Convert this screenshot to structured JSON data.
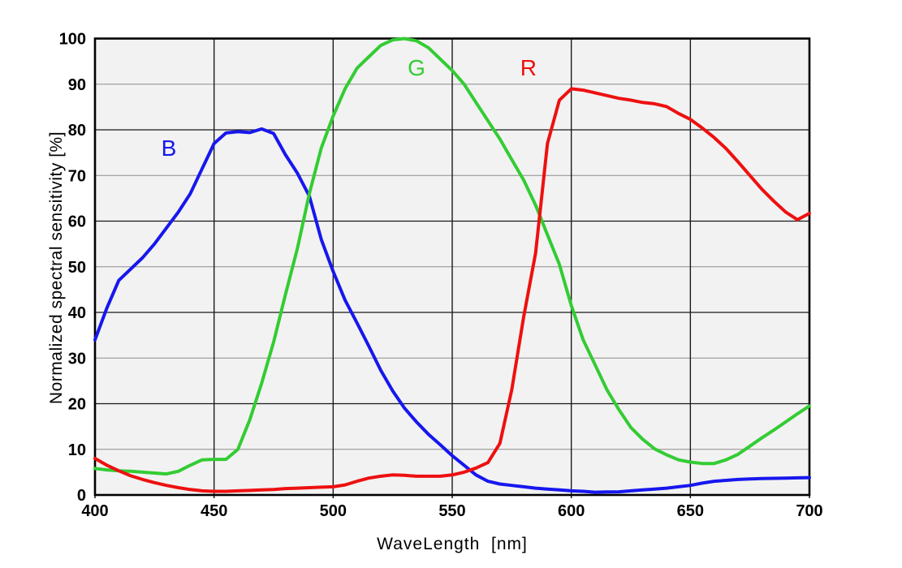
{
  "figure": {
    "background": "#ffffff",
    "plot_background": "#f2f2f2",
    "frame_color": "#000000",
    "grid_major_color": "#1a1a1a",
    "grid_minor_color": "#8c8c8c",
    "vertical_grid_color": "#1a1a1a"
  },
  "chart_data": {
    "type": "line",
    "title": "",
    "xlabel": "WaveLength  [nm]",
    "ylabel": "Normalized spectral sensitivity [%]",
    "xlim": [
      400,
      700
    ],
    "ylim": [
      0,
      100
    ],
    "x_ticks": [
      400,
      450,
      500,
      550,
      600,
      650,
      700
    ],
    "y_ticks": [
      0,
      10,
      20,
      30,
      40,
      50,
      60,
      70,
      80,
      90,
      100
    ],
    "grid": "on",
    "legend_position": "inline-curve-labels",
    "x": [
      400,
      405,
      410,
      415,
      420,
      425,
      430,
      435,
      440,
      445,
      450,
      455,
      460,
      465,
      470,
      475,
      480,
      485,
      490,
      495,
      500,
      505,
      510,
      515,
      520,
      525,
      530,
      535,
      540,
      545,
      550,
      555,
      560,
      565,
      570,
      575,
      580,
      585,
      590,
      595,
      600,
      605,
      610,
      615,
      620,
      625,
      630,
      635,
      640,
      645,
      650,
      655,
      660,
      665,
      670,
      675,
      680,
      685,
      690,
      695,
      700
    ],
    "series": [
      {
        "name": "B",
        "color": "#1717ee",
        "label_pos": {
          "x_nm": 431,
          "y_pct": 76
        },
        "values": [
          34,
          41,
          47,
          49.5,
          52,
          55,
          58.5,
          62,
          66,
          71.5,
          77,
          79.3,
          79.6,
          79.4,
          80.2,
          79.2,
          74.5,
          70.5,
          65.5,
          56,
          49,
          42.7,
          37.7,
          32.6,
          27.3,
          22.8,
          19,
          16,
          13.3,
          11,
          8.6,
          6.5,
          4.4,
          3,
          2.4,
          2.1,
          1.8,
          1.5,
          1.3,
          1.1,
          0.9,
          0.8,
          0.6,
          0.65,
          0.7,
          0.9,
          1.1,
          1.3,
          1.5,
          1.8,
          2.1,
          2.6,
          3,
          3.2,
          3.4,
          3.5,
          3.6,
          3.65,
          3.7,
          3.75,
          3.8
        ]
      },
      {
        "name": "G",
        "color": "#33cc33",
        "label_pos": {
          "x_nm": 535,
          "y_pct": 93.5
        },
        "values": [
          5.8,
          5.5,
          5.3,
          5.2,
          5.0,
          4.8,
          4.6,
          5.2,
          6.5,
          7.7,
          7.8,
          7.8,
          10,
          16.5,
          24.5,
          33.5,
          44,
          54,
          66,
          76,
          83,
          89,
          93.5,
          96,
          98.5,
          99.7,
          100,
          99.5,
          98,
          95.5,
          93,
          90,
          86,
          82,
          78,
          73.5,
          69,
          63.5,
          57,
          50.5,
          41.5,
          34,
          28.5,
          23,
          18.7,
          14.8,
          12.2,
          10.1,
          8.8,
          7.7,
          7.2,
          6.9,
          6.9,
          7.7,
          8.9,
          10.7,
          12.5,
          14.2,
          16,
          17.8,
          19.5
        ]
      },
      {
        "name": "R",
        "color": "#ee1010",
        "label_pos": {
          "x_nm": 582,
          "y_pct": 93.5
        },
        "values": [
          8,
          6.5,
          5.3,
          4.2,
          3.4,
          2.7,
          2.1,
          1.6,
          1.2,
          0.9,
          0.8,
          0.8,
          0.9,
          1.0,
          1.1,
          1.2,
          1.4,
          1.5,
          1.6,
          1.7,
          1.8,
          2.2,
          3.0,
          3.7,
          4.1,
          4.4,
          4.3,
          4.1,
          4.1,
          4.1,
          4.4,
          5.0,
          5.9,
          7.1,
          11.3,
          23,
          39,
          53,
          77,
          86.5,
          89,
          88.7,
          88.1,
          87.5,
          86.9,
          86.5,
          86,
          85.7,
          85.1,
          83.6,
          82.3,
          80.4,
          78.3,
          75.9,
          73,
          70,
          67,
          64.4,
          62,
          60.3,
          61.7
        ]
      }
    ]
  }
}
